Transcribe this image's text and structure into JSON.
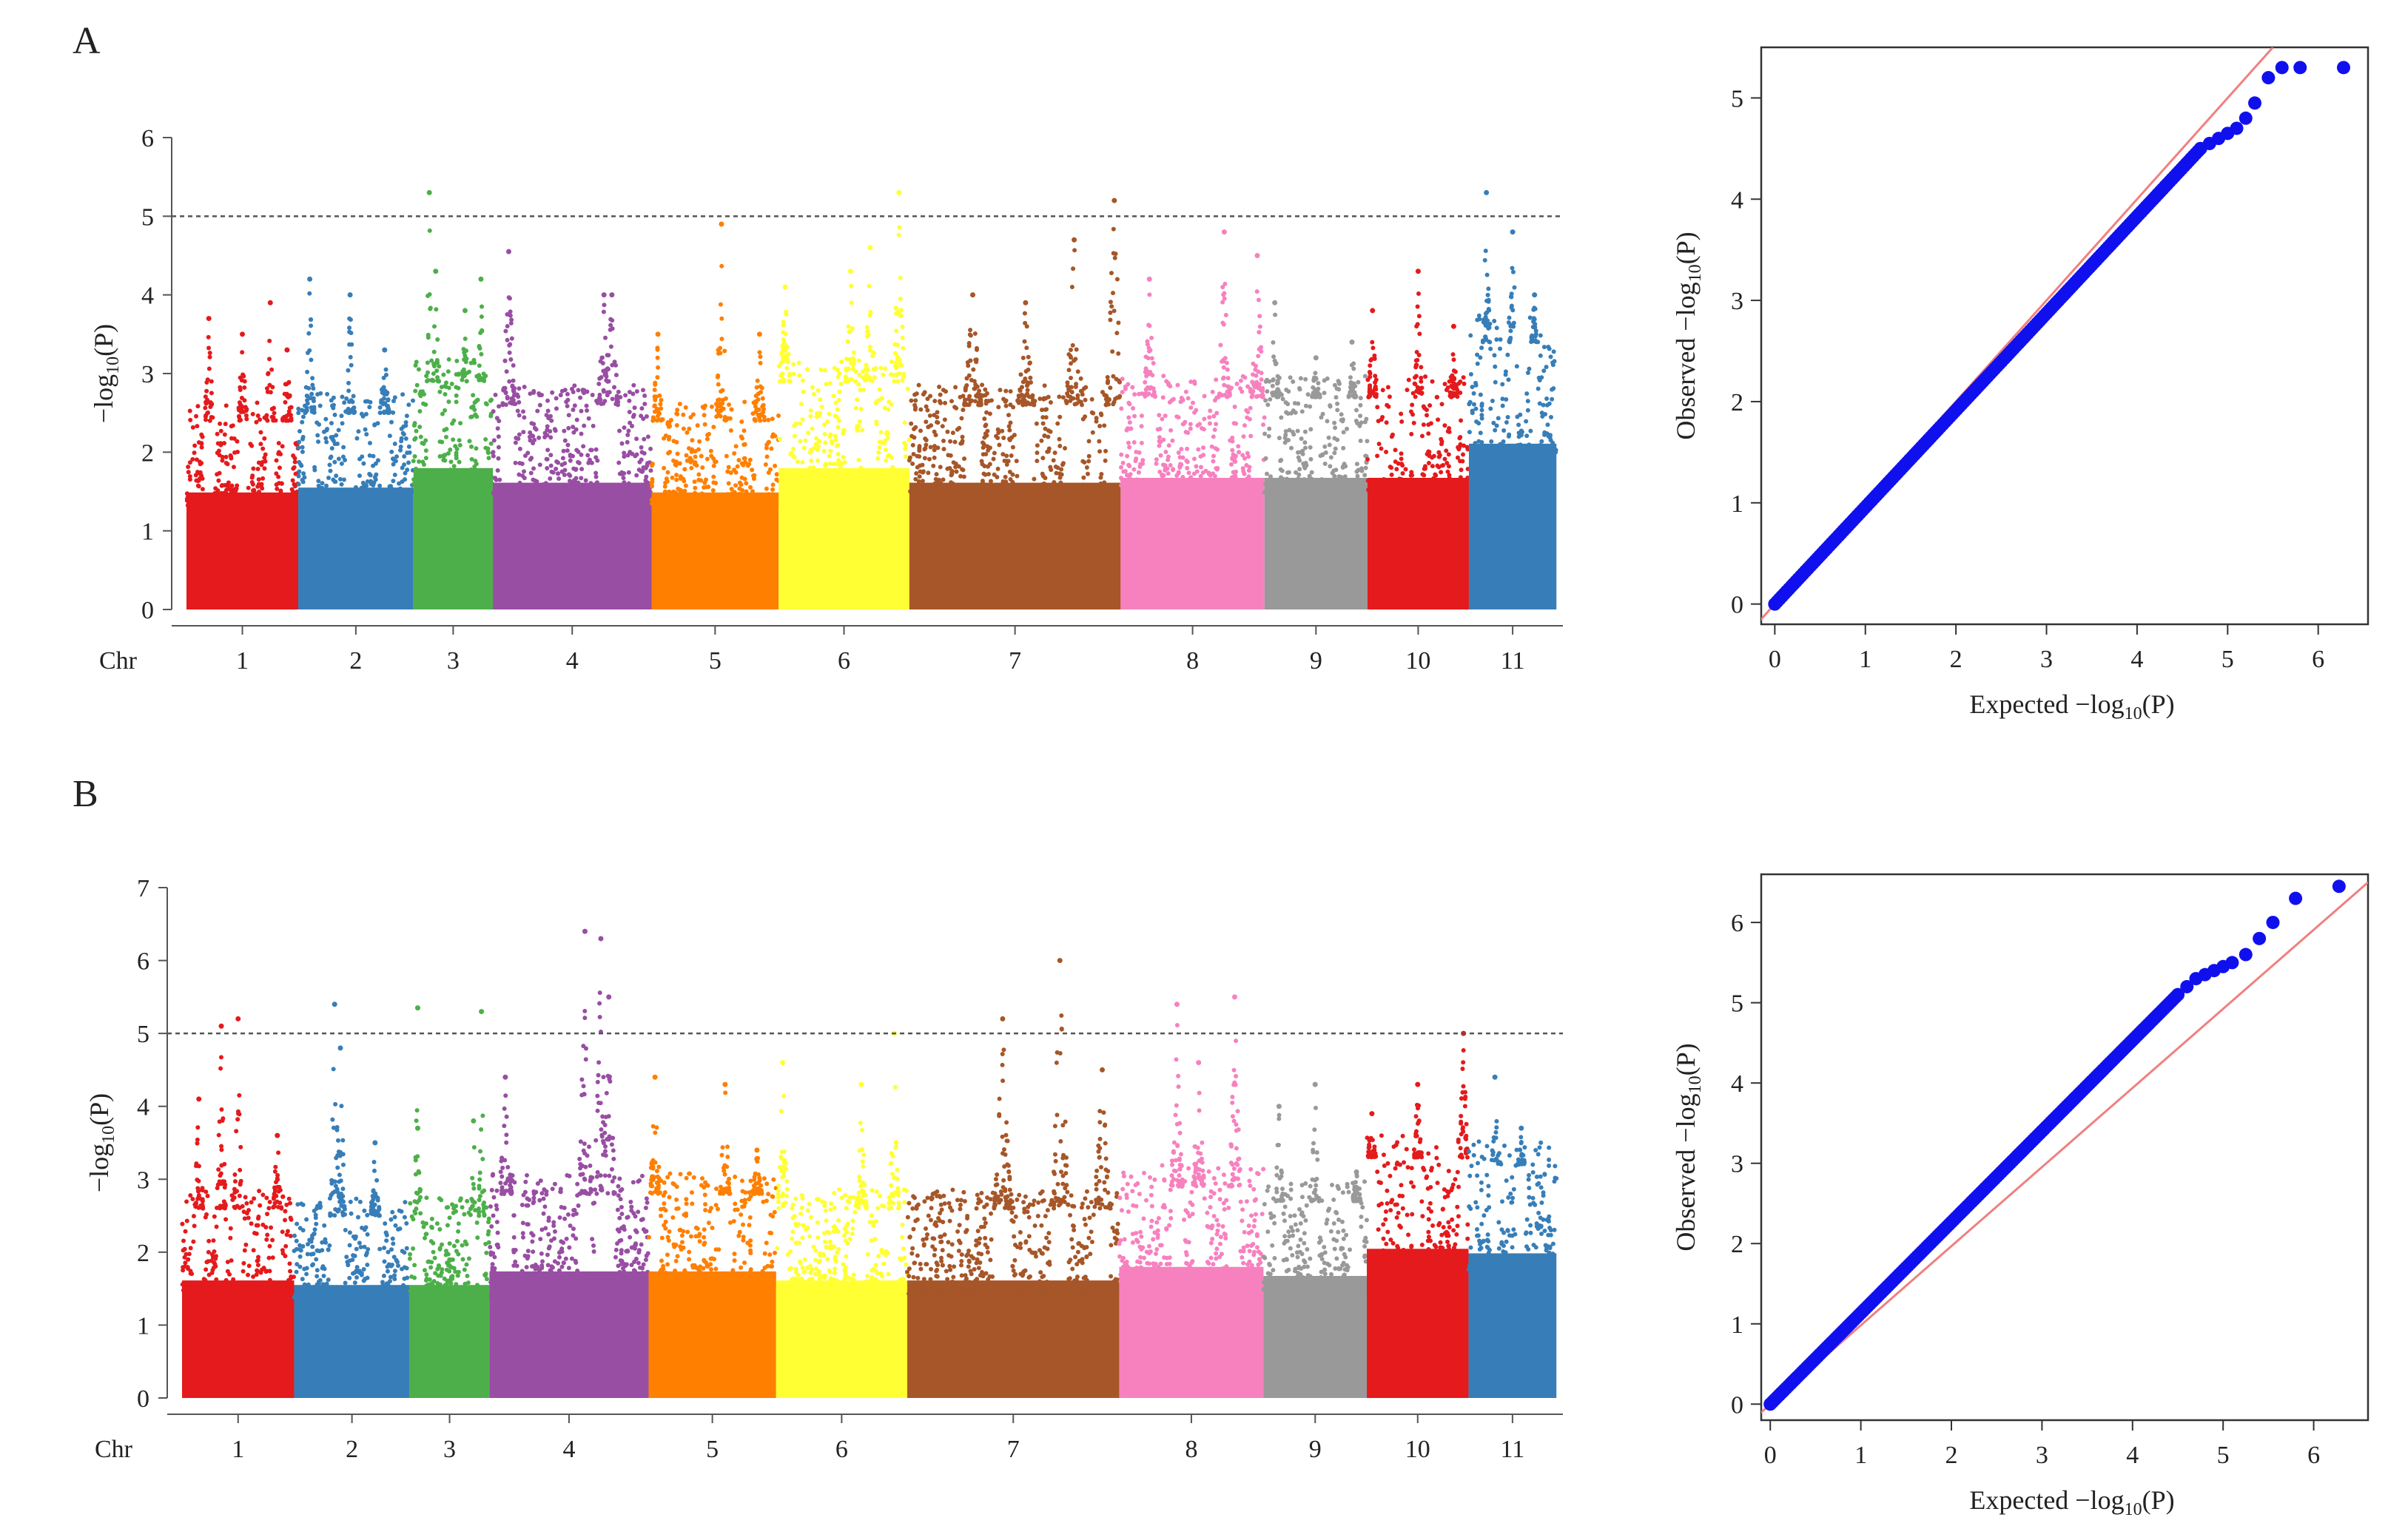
{
  "figure": {
    "panels": [
      {
        "letter": "A"
      },
      {
        "letter": "B"
      }
    ],
    "colors": {
      "chromosomes": [
        "#e41a1c",
        "#377eb8",
        "#4daf4a",
        "#984ea3",
        "#ff7f00",
        "#ffff33",
        "#a65628",
        "#f781bf",
        "#999999",
        "#e41a1c",
        "#377eb8"
      ],
      "qq_points": "#1010ee",
      "qq_line": "#f08080",
      "threshold": "#555555"
    }
  },
  "chart_data": [
    {
      "type": "scatter",
      "subtype": "manhattan",
      "panel": "A",
      "title": "",
      "xlabel": "Chr",
      "ylabel_prefix": "−log",
      "ylabel_sub": "10",
      "ylabel_suffix": "(P)",
      "ylim": [
        0,
        6
      ],
      "yticks": [
        "0",
        "1",
        "2",
        "3",
        "4",
        "5",
        "6"
      ],
      "threshold": 5,
      "categories": [
        "1",
        "2",
        "3",
        "4",
        "5",
        "6",
        "7",
        "8",
        "9",
        "10",
        "11"
      ],
      "chromosome_widths": [
        0.0812,
        0.0837,
        0.0577,
        0.1153,
        0.0923,
        0.095,
        0.1535,
        0.1045,
        0.0748,
        0.0737,
        0.0636
      ],
      "peak_profile": [
        [
          [
            0.2,
            3.7
          ],
          [
            0.5,
            3.5
          ],
          [
            0.75,
            3.9
          ],
          [
            0.9,
            3.3
          ]
        ],
        [
          [
            0.1,
            4.2
          ],
          [
            0.45,
            4.0
          ],
          [
            0.75,
            3.3
          ]
        ],
        [
          [
            0.2,
            5.3
          ],
          [
            0.28,
            4.3
          ],
          [
            0.65,
            3.8
          ],
          [
            0.85,
            4.2
          ]
        ],
        [
          [
            0.1,
            4.55
          ],
          [
            0.7,
            4.0
          ],
          [
            0.75,
            4.0
          ]
        ],
        [
          [
            0.05,
            3.5
          ],
          [
            0.55,
            4.9
          ],
          [
            0.85,
            3.5
          ]
        ],
        [
          [
            0.05,
            4.1
          ],
          [
            0.55,
            4.3
          ],
          [
            0.7,
            4.6
          ],
          [
            0.92,
            5.3
          ]
        ],
        [
          [
            0.3,
            4.0
          ],
          [
            0.55,
            3.9
          ],
          [
            0.78,
            4.7
          ],
          [
            0.97,
            5.2
          ]
        ],
        [
          [
            0.2,
            4.2
          ],
          [
            0.72,
            4.8
          ],
          [
            0.95,
            4.5
          ]
        ],
        [
          [
            0.1,
            3.9
          ],
          [
            0.5,
            3.2
          ],
          [
            0.85,
            3.4
          ]
        ],
        [
          [
            0.05,
            3.8
          ],
          [
            0.5,
            4.3
          ],
          [
            0.85,
            3.6
          ]
        ],
        [
          [
            0.2,
            5.3
          ],
          [
            0.5,
            4.8
          ],
          [
            0.75,
            4.0
          ]
        ]
      ],
      "base_height": [
        2.4,
        2.5,
        2.9,
        2.6,
        2.4,
        2.9,
        2.6,
        2.7,
        2.7,
        2.7,
        3.4
      ]
    },
    {
      "type": "scatter",
      "subtype": "qq",
      "panel": "A",
      "xlabel_prefix": "Expected ",
      "xlabel_main": "−log",
      "xlabel_sub": "10",
      "xlabel_suffix": "(P)",
      "ylabel_prefix": "Observed  −log",
      "ylabel_sub": "10",
      "ylabel_suffix": "(P)",
      "xlim": [
        -0.15,
        6.55
      ],
      "ylim": [
        -0.2,
        5.5
      ],
      "xticks": [
        "0",
        "1",
        "2",
        "3",
        "4",
        "5",
        "6"
      ],
      "yticks": [
        "0",
        "1",
        "2",
        "3",
        "4",
        "5"
      ],
      "tail_points": [
        [
          4.7,
          4.5
        ],
        [
          4.8,
          4.55
        ],
        [
          4.9,
          4.6
        ],
        [
          5.0,
          4.65
        ],
        [
          5.1,
          4.7
        ],
        [
          5.2,
          4.8
        ],
        [
          5.3,
          4.95
        ],
        [
          5.45,
          5.2
        ],
        [
          5.6,
          5.3
        ],
        [
          5.8,
          5.3
        ],
        [
          6.28,
          5.3
        ]
      ],
      "diagonal": [
        [
          -0.2,
          -0.2
        ],
        [
          5.5,
          5.5
        ]
      ]
    },
    {
      "type": "scatter",
      "subtype": "manhattan",
      "panel": "B",
      "title": "",
      "xlabel": "Chr",
      "ylabel_prefix": "−log",
      "ylabel_sub": "10",
      "ylabel_suffix": "(P)",
      "ylim": [
        0,
        7
      ],
      "yticks": [
        "0",
        "1",
        "2",
        "3",
        "4",
        "5",
        "6",
        "7"
      ],
      "threshold": 5,
      "categories": [
        "1",
        "2",
        "3",
        "4",
        "5",
        "6",
        "7",
        "8",
        "9",
        "10",
        "11"
      ],
      "chromosome_widths": [
        0.0812,
        0.0837,
        0.0577,
        0.1153,
        0.0923,
        0.095,
        0.1535,
        0.1045,
        0.0748,
        0.0737,
        0.0636
      ],
      "peak_profile": [
        [
          [
            0.15,
            4.1
          ],
          [
            0.35,
            5.1
          ],
          [
            0.5,
            5.2
          ],
          [
            0.85,
            3.6
          ]
        ],
        [
          [
            0.35,
            5.4
          ],
          [
            0.4,
            4.8
          ],
          [
            0.7,
            3.5
          ]
        ],
        [
          [
            0.1,
            3.7
          ],
          [
            0.1,
            5.35
          ],
          [
            0.9,
            5.3
          ],
          [
            0.8,
            3.8
          ]
        ],
        [
          [
            0.1,
            4.4
          ],
          [
            0.6,
            6.4
          ],
          [
            0.7,
            6.3
          ],
          [
            0.75,
            5.5
          ]
        ],
        [
          [
            0.05,
            4.4
          ],
          [
            0.6,
            4.3
          ],
          [
            0.85,
            3.4
          ]
        ],
        [
          [
            0.05,
            4.6
          ],
          [
            0.65,
            4.3
          ],
          [
            0.9,
            5.0
          ]
        ],
        [
          [
            0.45,
            5.2
          ],
          [
            0.72,
            6.0
          ],
          [
            0.92,
            4.5
          ]
        ],
        [
          [
            0.4,
            5.4
          ],
          [
            0.8,
            5.5
          ],
          [
            0.55,
            4.6
          ]
        ],
        [
          [
            0.15,
            4.0
          ],
          [
            0.5,
            4.3
          ],
          [
            0.9,
            3.1
          ]
        ],
        [
          [
            0.05,
            3.9
          ],
          [
            0.5,
            4.3
          ],
          [
            0.95,
            5.0
          ]
        ],
        [
          [
            0.3,
            4.4
          ],
          [
            0.6,
            3.7
          ]
        ]
      ],
      "base_height": [
        2.6,
        2.5,
        2.5,
        2.8,
        2.8,
        2.6,
        2.6,
        2.9,
        2.7,
        3.3,
        3.2
      ]
    },
    {
      "type": "scatter",
      "subtype": "qq",
      "panel": "B",
      "xlabel_prefix": "Expected  ",
      "xlabel_main": "−log",
      "xlabel_sub": "10",
      "xlabel_suffix": "(P)",
      "ylabel_prefix": "Observed  −log",
      "ylabel_sub": "10",
      "ylabel_suffix": "(P)",
      "xlim": [
        -0.1,
        6.6
      ],
      "ylim": [
        -0.2,
        6.6
      ],
      "xticks": [
        "0",
        "1",
        "2",
        "3",
        "4",
        "5",
        "6"
      ],
      "yticks": [
        "0",
        "1",
        "2",
        "3",
        "4",
        "5",
        "6"
      ],
      "tail_points": [
        [
          4.5,
          5.1
        ],
        [
          4.6,
          5.2
        ],
        [
          4.7,
          5.3
        ],
        [
          4.8,
          5.35
        ],
        [
          4.9,
          5.4
        ],
        [
          5.0,
          5.45
        ],
        [
          5.1,
          5.5
        ],
        [
          5.25,
          5.6
        ],
        [
          5.4,
          5.8
        ],
        [
          5.55,
          6.0
        ],
        [
          5.8,
          6.3
        ],
        [
          6.28,
          6.45
        ]
      ],
      "diagonal": [
        [
          -0.2,
          -0.2
        ],
        [
          6.6,
          6.5
        ]
      ]
    }
  ]
}
